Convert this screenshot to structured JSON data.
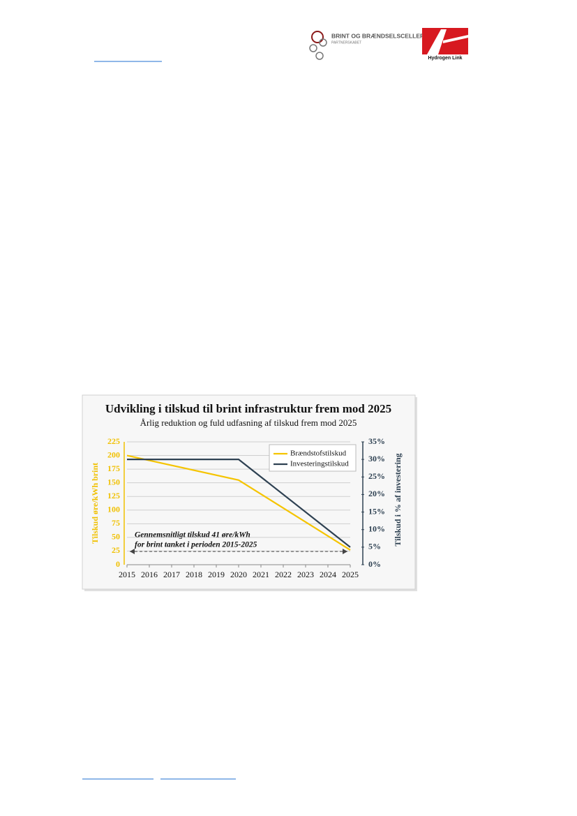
{
  "header": {
    "logo_title": "BRINT OG BRÆNDSELSCELLER",
    "logo_subtitle": "PARTNERSKABET",
    "logo2": "Hydrogen Link"
  },
  "chart_data": {
    "type": "line",
    "title": "Udvikling i tilskud til brint infrastruktur frem mod 2025",
    "subtitle": "Årlig reduktion og fuld udfasning af tilskud frem mod 2025",
    "ylabel": "Tilskud øre/kWh brint",
    "y2label": "Tilskud i % af investering",
    "annotations": [
      "Gennemsnitligt tilskud 41 øre/kWh",
      "for brint tanket i perioden 2015-2025"
    ],
    "x": [
      2015,
      2020,
      2025
    ],
    "xlim": [
      2015,
      2025
    ],
    "xticks": [
      2015,
      2016,
      2017,
      2018,
      2019,
      2020,
      2021,
      2022,
      2023,
      2024,
      2025
    ],
    "ylim": [
      0,
      225
    ],
    "yticks": [
      0,
      25,
      50,
      75,
      100,
      125,
      150,
      175,
      200,
      225
    ],
    "y2lim": [
      0,
      35
    ],
    "y2ticks": [
      {
        "value": 0,
        "label": "0%"
      },
      {
        "value": 5,
        "label": "5%"
      },
      {
        "value": 10,
        "label": "10%"
      },
      {
        "value": 15,
        "label": "15%"
      },
      {
        "value": 20,
        "label": "20%"
      },
      {
        "value": 25,
        "label": "25%"
      },
      {
        "value": 30,
        "label": "30%"
      },
      {
        "value": 35,
        "label": "35%"
      }
    ],
    "grid": true,
    "legend": "top-right",
    "series": [
      {
        "name": "Brændstofstilskud",
        "color": "#f5c400",
        "values": [
          200,
          155,
          27
        ]
      },
      {
        "name": "Investeringstilskud",
        "color": "#2e4152",
        "axis": "y2",
        "values": [
          30,
          30,
          5
        ]
      }
    ]
  }
}
